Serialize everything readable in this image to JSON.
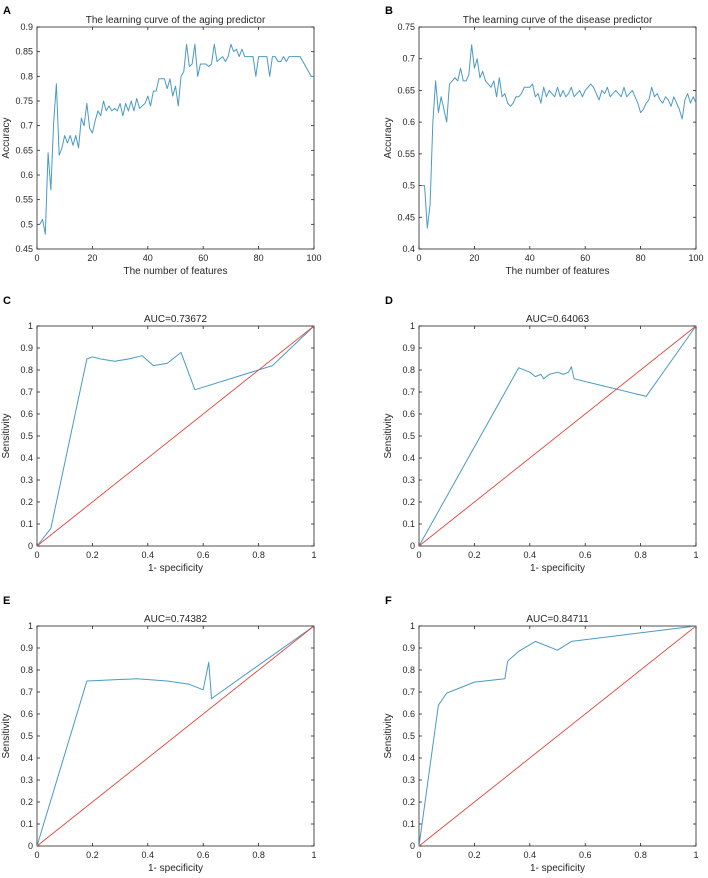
{
  "colors": {
    "curve": "#4a9ac4",
    "diagonal": "#e0453c",
    "axis": "#262626"
  },
  "chart_data": [
    {
      "panel": "A",
      "type": "line",
      "title": "The learning curve of the aging predictor",
      "xlabel": "The number of features",
      "ylabel": "Accuracy",
      "xlim": [
        0,
        100
      ],
      "ylim": [
        0.45,
        0.9
      ],
      "xticks": [
        0,
        20,
        40,
        60,
        80,
        100
      ],
      "yticks": [
        0.45,
        0.5,
        0.55,
        0.6,
        0.65,
        0.7,
        0.75,
        0.8,
        0.85,
        0.9
      ],
      "yticklabels": [
        "0.45",
        "0.5",
        "0.55",
        "0.6",
        "0.65",
        "0.7",
        "0.75",
        "0.8",
        "0.85",
        "0.9"
      ],
      "series": [
        {
          "name": "aging",
          "x": [
            1,
            2,
            3,
            4,
            5,
            6,
            7,
            8,
            9,
            10,
            11,
            12,
            13,
            14,
            15,
            16,
            17,
            18,
            19,
            20,
            21,
            22,
            23,
            24,
            25,
            26,
            27,
            28,
            29,
            30,
            31,
            32,
            33,
            34,
            35,
            36,
            37,
            38,
            39,
            40,
            41,
            42,
            43,
            44,
            45,
            46,
            47,
            48,
            49,
            50,
            51,
            52,
            53,
            54,
            55,
            56,
            57,
            58,
            59,
            60,
            61,
            62,
            63,
            64,
            65,
            66,
            67,
            68,
            69,
            70,
            71,
            72,
            73,
            74,
            75,
            76,
            77,
            78,
            79,
            80,
            81,
            82,
            83,
            84,
            85,
            86,
            87,
            88,
            89,
            90,
            91,
            92,
            93,
            94,
            95,
            96,
            97,
            98,
            99,
            100
          ],
          "values": [
            0.5,
            0.51,
            0.48,
            0.645,
            0.57,
            0.705,
            0.785,
            0.64,
            0.655,
            0.68,
            0.665,
            0.68,
            0.66,
            0.68,
            0.655,
            0.715,
            0.7,
            0.745,
            0.695,
            0.685,
            0.71,
            0.73,
            0.72,
            0.75,
            0.73,
            0.74,
            0.73,
            0.735,
            0.73,
            0.745,
            0.72,
            0.745,
            0.73,
            0.75,
            0.73,
            0.755,
            0.735,
            0.74,
            0.745,
            0.76,
            0.74,
            0.77,
            0.77,
            0.795,
            0.795,
            0.795,
            0.775,
            0.795,
            0.76,
            0.78,
            0.74,
            0.8,
            0.81,
            0.865,
            0.82,
            0.825,
            0.865,
            0.8,
            0.825,
            0.825,
            0.825,
            0.82,
            0.825,
            0.865,
            0.83,
            0.835,
            0.84,
            0.83,
            0.84,
            0.865,
            0.85,
            0.855,
            0.84,
            0.855,
            0.84,
            0.84,
            0.84,
            0.84,
            0.8,
            0.84,
            0.84,
            0.84,
            0.84,
            0.8,
            0.84,
            0.84,
            0.83,
            0.83,
            0.84,
            0.83,
            0.84,
            0.84,
            0.84,
            0.84,
            0.84,
            0.83,
            0.82,
            0.81,
            0.8,
            0.8
          ]
        }
      ]
    },
    {
      "panel": "B",
      "type": "line",
      "title": "The learning curve of the disease predictor",
      "xlabel": "The number of features",
      "ylabel": "Accuracy",
      "xlim": [
        0,
        100
      ],
      "ylim": [
        0.4,
        0.75
      ],
      "xticks": [
        0,
        20,
        40,
        60,
        80,
        100
      ],
      "yticks": [
        0.4,
        0.45,
        0.5,
        0.55,
        0.6,
        0.65,
        0.7,
        0.75
      ],
      "yticklabels": [
        "0.4",
        "0.45",
        "0.5",
        "0.55",
        "0.6",
        "0.65",
        "0.7",
        "0.75"
      ],
      "series": [
        {
          "name": "disease",
          "x": [
            1,
            2,
            3,
            4,
            5,
            6,
            7,
            8,
            9,
            10,
            11,
            12,
            13,
            14,
            15,
            16,
            17,
            18,
            19,
            20,
            21,
            22,
            23,
            24,
            25,
            26,
            27,
            28,
            29,
            30,
            31,
            32,
            33,
            34,
            35,
            36,
            37,
            38,
            39,
            40,
            41,
            42,
            43,
            44,
            45,
            46,
            47,
            48,
            49,
            50,
            51,
            52,
            53,
            54,
            55,
            56,
            57,
            58,
            59,
            60,
            61,
            62,
            63,
            64,
            65,
            66,
            67,
            68,
            69,
            70,
            71,
            72,
            73,
            74,
            75,
            76,
            77,
            78,
            79,
            80,
            81,
            82,
            83,
            84,
            85,
            86,
            87,
            88,
            89,
            90,
            91,
            92,
            93,
            94,
            95,
            96,
            97,
            98,
            99,
            100
          ],
          "values": [
            0.5,
            0.5,
            0.433,
            0.47,
            0.6,
            0.665,
            0.615,
            0.64,
            0.62,
            0.6,
            0.66,
            0.665,
            0.67,
            0.665,
            0.685,
            0.665,
            0.665,
            0.675,
            0.722,
            0.685,
            0.7,
            0.67,
            0.68,
            0.665,
            0.66,
            0.655,
            0.665,
            0.64,
            0.67,
            0.64,
            0.645,
            0.63,
            0.625,
            0.63,
            0.64,
            0.64,
            0.645,
            0.655,
            0.655,
            0.655,
            0.66,
            0.64,
            0.645,
            0.63,
            0.655,
            0.64,
            0.65,
            0.645,
            0.64,
            0.655,
            0.64,
            0.65,
            0.64,
            0.645,
            0.655,
            0.64,
            0.645,
            0.65,
            0.64,
            0.65,
            0.655,
            0.66,
            0.655,
            0.645,
            0.635,
            0.65,
            0.645,
            0.655,
            0.64,
            0.645,
            0.65,
            0.645,
            0.64,
            0.655,
            0.64,
            0.645,
            0.65,
            0.64,
            0.63,
            0.615,
            0.62,
            0.63,
            0.635,
            0.655,
            0.64,
            0.645,
            0.635,
            0.63,
            0.64,
            0.635,
            0.625,
            0.64,
            0.63,
            0.62,
            0.605,
            0.635,
            0.645,
            0.63,
            0.64,
            0.63
          ]
        }
      ]
    },
    {
      "panel": "C",
      "type": "line",
      "title": "AUC=0.73672",
      "xlabel": "1- specificity",
      "ylabel": "Sensitivity",
      "xlim": [
        0,
        1
      ],
      "ylim": [
        0,
        1
      ],
      "xticks": [
        0,
        0.2,
        0.4,
        0.6,
        0.8,
        1
      ],
      "xticklabels": [
        "0",
        "0.2",
        "0.4",
        "0.6",
        "0.8",
        "1"
      ],
      "yticks": [
        0,
        0.1,
        0.2,
        0.3,
        0.4,
        0.5,
        0.6,
        0.7,
        0.8,
        0.9,
        1
      ],
      "yticklabels": [
        "0",
        "0.1",
        "0.2",
        "0.3",
        "0.4",
        "0.5",
        "0.6",
        "0.7",
        "0.8",
        "0.9",
        "1"
      ],
      "series": [
        {
          "name": "ROC",
          "x": [
            0,
            0.05,
            0.18,
            0.2,
            0.23,
            0.28,
            0.33,
            0.38,
            0.42,
            0.47,
            0.52,
            0.57,
            0.85,
            1
          ],
          "values": [
            0,
            0.08,
            0.85,
            0.86,
            0.85,
            0.84,
            0.85,
            0.865,
            0.82,
            0.83,
            0.88,
            0.71,
            0.82,
            1
          ]
        },
        {
          "name": "diagonal",
          "x": [
            0,
            1
          ],
          "values": [
            0,
            1
          ]
        }
      ]
    },
    {
      "panel": "D",
      "type": "line",
      "title": "AUC=0.64063",
      "xlabel": "1- specificity",
      "ylabel": "Sensitivity",
      "xlim": [
        0,
        1
      ],
      "ylim": [
        0,
        1
      ],
      "xticks": [
        0,
        0.2,
        0.4,
        0.6,
        0.8,
        1
      ],
      "xticklabels": [
        "0",
        "0.2",
        "0.4",
        "0.6",
        "0.8",
        "1"
      ],
      "yticks": [
        0,
        0.1,
        0.2,
        0.3,
        0.4,
        0.5,
        0.6,
        0.7,
        0.8,
        0.9,
        1
      ],
      "yticklabels": [
        "0",
        "0.1",
        "0.2",
        "0.3",
        "0.4",
        "0.5",
        "0.6",
        "0.7",
        "0.8",
        "0.9",
        "1"
      ],
      "series": [
        {
          "name": "ROC",
          "x": [
            0,
            0.36,
            0.4,
            0.42,
            0.44,
            0.45,
            0.47,
            0.5,
            0.52,
            0.54,
            0.55,
            0.56,
            0.82,
            1
          ],
          "values": [
            0,
            0.81,
            0.79,
            0.77,
            0.78,
            0.76,
            0.78,
            0.79,
            0.78,
            0.79,
            0.815,
            0.76,
            0.68,
            1
          ]
        },
        {
          "name": "diagonal",
          "x": [
            0,
            1
          ],
          "values": [
            0,
            1
          ]
        }
      ]
    },
    {
      "panel": "E",
      "type": "line",
      "title": "AUC=0.74382",
      "xlabel": "1- specificity",
      "ylabel": "Sensitivity",
      "xlim": [
        0,
        1
      ],
      "ylim": [
        0,
        1
      ],
      "xticks": [
        0,
        0.2,
        0.4,
        0.6,
        0.8,
        1
      ],
      "xticklabels": [
        "0",
        "0.2",
        "0.4",
        "0.6",
        "0.8",
        "1"
      ],
      "yticks": [
        0,
        0.1,
        0.2,
        0.3,
        0.4,
        0.5,
        0.6,
        0.7,
        0.8,
        0.9,
        1
      ],
      "yticklabels": [
        "0",
        "0.1",
        "0.2",
        "0.3",
        "0.4",
        "0.5",
        "0.6",
        "0.7",
        "0.8",
        "0.9",
        "1"
      ],
      "series": [
        {
          "name": "ROC",
          "x": [
            0,
            0.18,
            0.36,
            0.47,
            0.55,
            0.6,
            0.62,
            0.63,
            1
          ],
          "values": [
            0,
            0.75,
            0.76,
            0.75,
            0.735,
            0.71,
            0.835,
            0.67,
            1
          ]
        },
        {
          "name": "diagonal",
          "x": [
            0,
            1
          ],
          "values": [
            0,
            1
          ]
        }
      ]
    },
    {
      "panel": "F",
      "type": "line",
      "title": "AUC=0.84711",
      "xlabel": "1- specificity",
      "ylabel": "Sensitivity",
      "xlim": [
        0,
        1
      ],
      "ylim": [
        0,
        1
      ],
      "xticks": [
        0,
        0.2,
        0.4,
        0.6,
        0.8,
        1
      ],
      "xticklabels": [
        "0",
        "0.2",
        "0.4",
        "0.6",
        "0.8",
        "1"
      ],
      "yticks": [
        0,
        0.1,
        0.2,
        0.3,
        0.4,
        0.5,
        0.6,
        0.7,
        0.8,
        0.9,
        1
      ],
      "yticklabels": [
        "0",
        "0.1",
        "0.2",
        "0.3",
        "0.4",
        "0.5",
        "0.6",
        "0.7",
        "0.8",
        "0.9",
        "1"
      ],
      "series": [
        {
          "name": "ROC",
          "x": [
            0,
            0.07,
            0.1,
            0.2,
            0.31,
            0.32,
            0.36,
            0.42,
            0.5,
            0.55,
            1
          ],
          "values": [
            0,
            0.64,
            0.695,
            0.745,
            0.76,
            0.84,
            0.885,
            0.93,
            0.89,
            0.93,
            1
          ]
        },
        {
          "name": "diagonal",
          "x": [
            0,
            1
          ],
          "values": [
            0,
            1
          ]
        }
      ]
    }
  ]
}
